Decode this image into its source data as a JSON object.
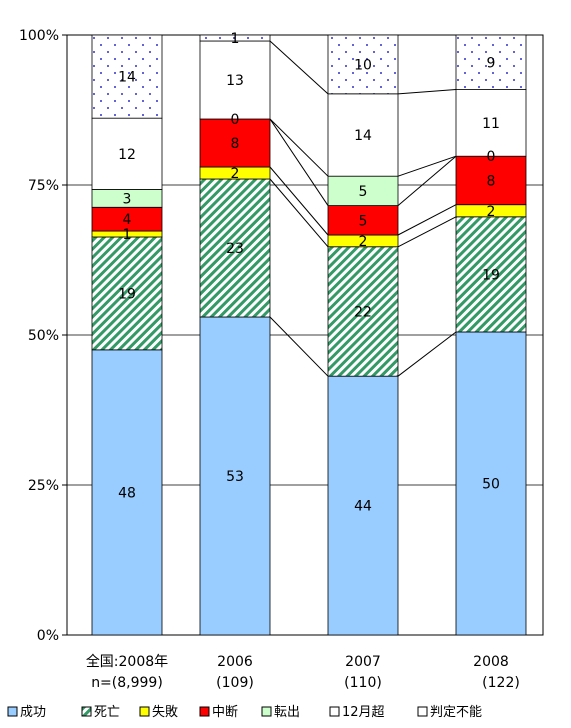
{
  "chart_data": {
    "type": "bar",
    "stacked": true,
    "normalized_percent": true,
    "categories": [
      {
        "line1": "全国:2008年",
        "line2": "n=(8,999)"
      },
      {
        "line1": "2006",
        "line2": "(109)"
      },
      {
        "line1": "2007",
        "line2": "(110)"
      },
      {
        "line1": "2008",
        "line2": "(122)"
      }
    ],
    "series": [
      {
        "name": "成功",
        "values": [
          48,
          53,
          44,
          50
        ],
        "color": "#99ccff",
        "pattern": "solid"
      },
      {
        "name": "死亡",
        "values": [
          19,
          23,
          22,
          19
        ],
        "color": "#339966",
        "pattern": "diagonal-hatch"
      },
      {
        "name": "失敗",
        "values": [
          1,
          2,
          2,
          2
        ],
        "color": "#ffff00",
        "pattern": "solid"
      },
      {
        "name": "中断",
        "values": [
          4,
          8,
          5,
          8
        ],
        "color": "#ff0000",
        "pattern": "solid"
      },
      {
        "name": "転出",
        "values": [
          3,
          0,
          5,
          0
        ],
        "color": "#ccffcc",
        "pattern": "solid"
      },
      {
        "name": "12月超",
        "values": [
          12,
          13,
          14,
          11
        ],
        "color": "#ffffff",
        "pattern": "solid"
      },
      {
        "name": "判定不能",
        "values": [
          14,
          1,
          10,
          9
        ],
        "color": "#ccccff",
        "pattern": "dots"
      }
    ],
    "ylim": [
      0,
      100
    ],
    "yticks": [
      "0%",
      "25%",
      "50%",
      "75%",
      "100%"
    ],
    "grid": true,
    "legend_position": "bottom"
  }
}
